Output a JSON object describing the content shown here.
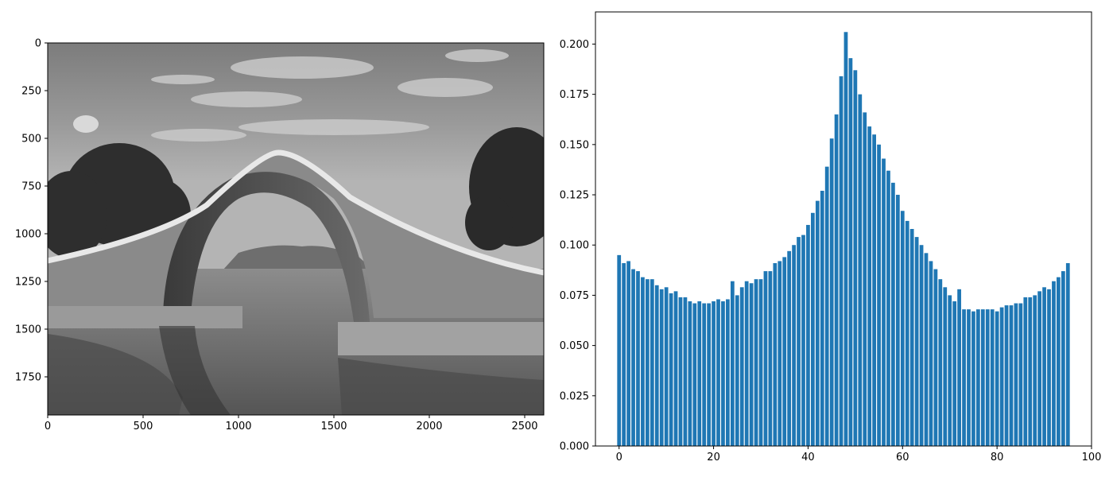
{
  "chart_data": [
    {
      "type": "image",
      "image_label": "grayscale photograph of an arched stone bridge over water",
      "xlim": [
        0,
        2600
      ],
      "ylim": [
        1950,
        0
      ],
      "x_ticks": [
        0,
        500,
        1000,
        1500,
        2000,
        2500
      ],
      "y_ticks": [
        0,
        250,
        500,
        750,
        1000,
        1250,
        1500,
        1750
      ],
      "title": "",
      "xlabel": "",
      "ylabel": ""
    },
    {
      "type": "bar",
      "title": "",
      "xlabel": "",
      "ylabel": "",
      "xlim": [
        -5,
        100
      ],
      "ylim": [
        0,
        0.216
      ],
      "x_ticks": [
        0,
        20,
        40,
        60,
        80,
        100
      ],
      "y_ticks": [
        0.0,
        0.025,
        0.05,
        0.075,
        0.1,
        0.125,
        0.15,
        0.175,
        0.2
      ],
      "bar_color": "#1f77b4",
      "x": [
        0,
        1,
        2,
        3,
        4,
        5,
        6,
        7,
        8,
        9,
        10,
        11,
        12,
        13,
        14,
        15,
        16,
        17,
        18,
        19,
        20,
        21,
        22,
        23,
        24,
        25,
        26,
        27,
        28,
        29,
        30,
        31,
        32,
        33,
        34,
        35,
        36,
        37,
        38,
        39,
        40,
        41,
        42,
        43,
        44,
        45,
        46,
        47,
        48,
        49,
        50,
        51,
        52,
        53,
        54,
        55,
        56,
        57,
        58,
        59,
        60,
        61,
        62,
        63,
        64,
        65,
        66,
        67,
        68,
        69,
        70,
        71,
        72,
        73,
        74,
        75,
        76,
        77,
        78,
        79,
        80,
        81,
        82,
        83,
        84,
        85,
        86,
        87,
        88,
        89,
        90,
        91,
        92,
        93,
        94,
        95
      ],
      "values": [
        0.095,
        0.091,
        0.092,
        0.088,
        0.087,
        0.084,
        0.083,
        0.083,
        0.08,
        0.078,
        0.079,
        0.076,
        0.077,
        0.074,
        0.074,
        0.072,
        0.071,
        0.072,
        0.071,
        0.071,
        0.072,
        0.073,
        0.072,
        0.073,
        0.082,
        0.075,
        0.079,
        0.082,
        0.081,
        0.083,
        0.083,
        0.087,
        0.087,
        0.091,
        0.092,
        0.094,
        0.097,
        0.1,
        0.104,
        0.105,
        0.11,
        0.116,
        0.122,
        0.127,
        0.139,
        0.153,
        0.165,
        0.184,
        0.206,
        0.193,
        0.187,
        0.175,
        0.166,
        0.159,
        0.155,
        0.15,
        0.143,
        0.137,
        0.131,
        0.125,
        0.117,
        0.112,
        0.108,
        0.104,
        0.1,
        0.096,
        0.092,
        0.088,
        0.083,
        0.079,
        0.075,
        0.072,
        0.078,
        0.068,
        0.068,
        0.067,
        0.068,
        0.068,
        0.068,
        0.068,
        0.067,
        0.069,
        0.07,
        0.07,
        0.071,
        0.071,
        0.074,
        0.074,
        0.075,
        0.077,
        0.079,
        0.078,
        0.082,
        0.084,
        0.087,
        0.091
      ]
    }
  ]
}
